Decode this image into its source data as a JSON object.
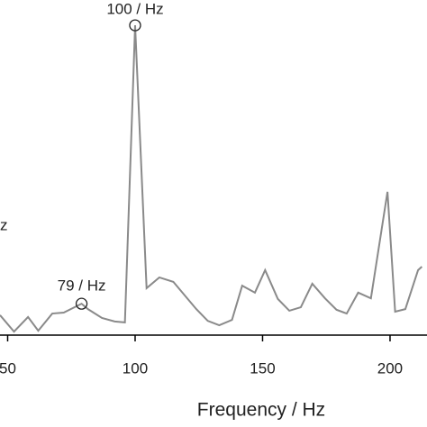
{
  "chart_data": {
    "type": "line",
    "x_label": "Frequency / Hz",
    "annotations": [
      "100 / Hz",
      "79 / Hz",
      "z"
    ],
    "series": [
      {
        "color": "#8a8a8a",
        "x": [
          47,
          52.5,
          58,
          62,
          67.5,
          72,
          79,
          81.5,
          87,
          92,
          96,
          100,
          104.5,
          109.5,
          115,
          119.5,
          124,
          128.5,
          133,
          138,
          142,
          147,
          151,
          156,
          160.5,
          165,
          169.5,
          174.5,
          179,
          183,
          187.5,
          192.5,
          199,
          202,
          206,
          211,
          212.5
        ],
        "values": [
          6.3,
          1.1,
          5.7,
          1.4,
          6.8,
          7.1,
          9.9,
          8.2,
          5.4,
          4.3,
          4.0,
          97.7,
          14.8,
          18.2,
          16.8,
          12.5,
          8.2,
          4.5,
          3.1,
          4.8,
          15.6,
          13.4,
          20.5,
          11.4,
          7.7,
          8.8,
          16.2,
          11.6,
          8.0,
          6.8,
          13.4,
          11.6,
          45.2,
          7.4,
          8.2,
          20.5,
          21.6
        ]
      }
    ],
    "xlim": [
      47,
      214.5
    ],
    "ylim": [
      0,
      100
    ],
    "xticks": [
      50,
      100,
      150,
      200
    ]
  }
}
